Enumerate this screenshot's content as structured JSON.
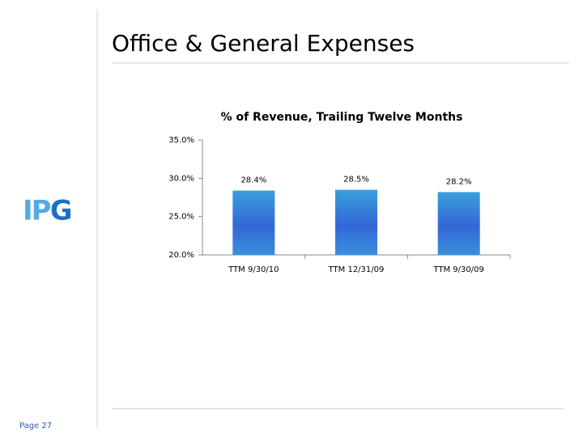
{
  "page": {
    "title": "Office & General Expenses",
    "logo": "IPG",
    "footer": "Page 27"
  },
  "chart_data": {
    "type": "bar",
    "title": "% of Revenue, Trailing Twelve Months",
    "categories": [
      "TTM 9/30/10",
      "TTM 12/31/09",
      "TTM 9/30/09"
    ],
    "values": [
      28.4,
      28.5,
      28.2
    ],
    "value_labels": [
      "28.4%",
      "28.5%",
      "28.2%"
    ],
    "color": "#3366d6",
    "ylim": [
      20,
      35
    ],
    "yticks": [
      {
        "value": 20,
        "label": "20.0%"
      },
      {
        "value": 25,
        "label": "25.0%"
      },
      {
        "value": 30,
        "label": "30.0%"
      },
      {
        "value": 35,
        "label": "35.0%"
      }
    ],
    "grid": false
  }
}
